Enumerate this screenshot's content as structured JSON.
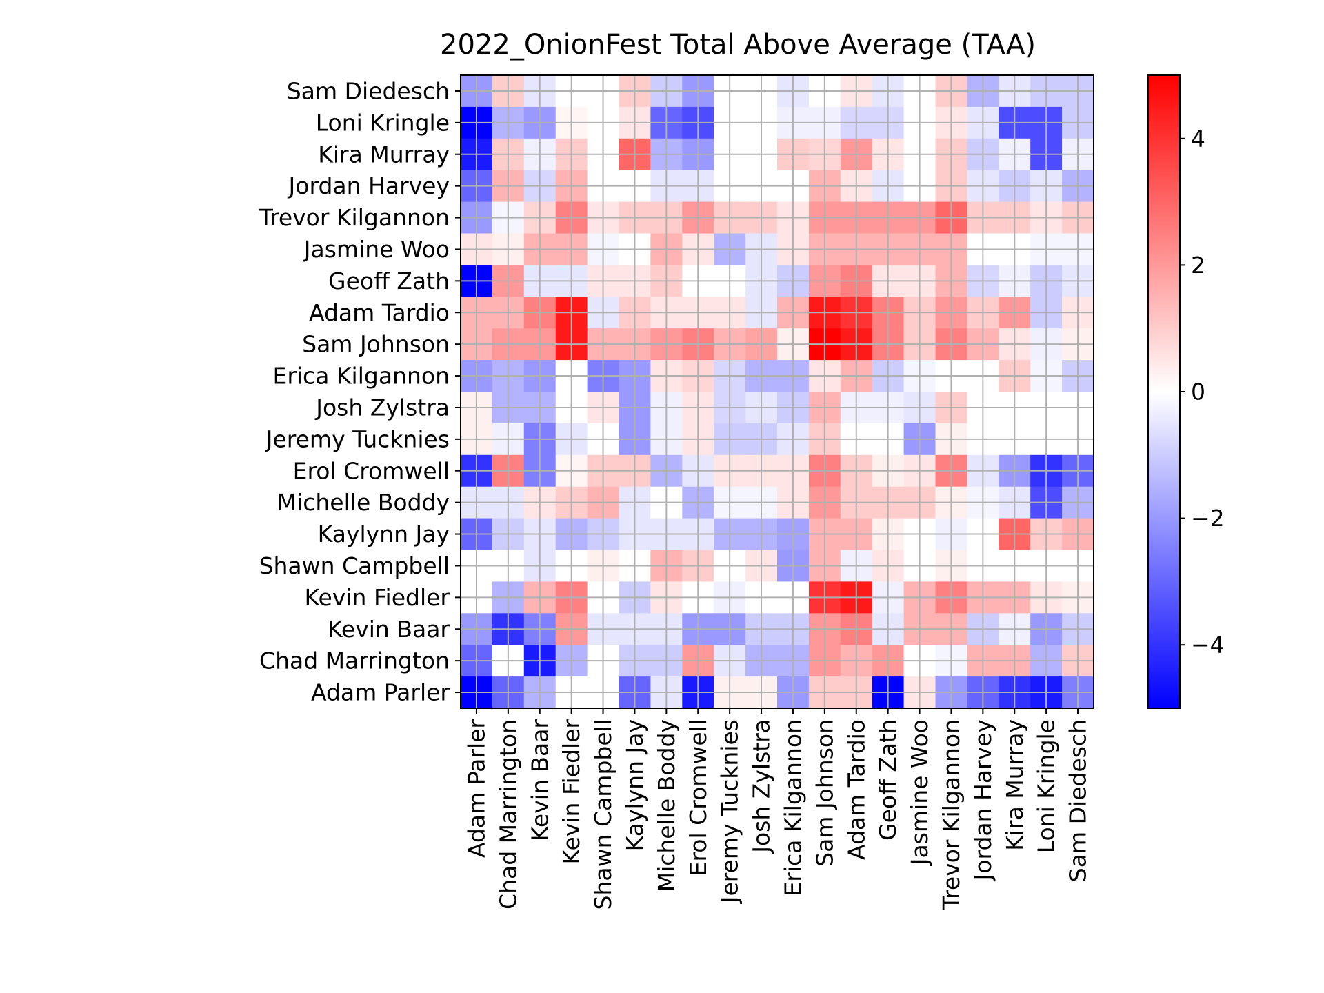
{
  "chart_data": {
    "type": "heatmap",
    "title": "2022_OnionFest Total Above Average (TAA)",
    "xlabel": "",
    "ylabel": "",
    "x_categories": [
      "Adam Parler",
      "Chad Marrington",
      "Kevin Baar",
      "Kevin Fiedler",
      "Shawn Campbell",
      "Kaylynn Jay",
      "Michelle Boddy",
      "Erol Cromwell",
      "Jeremy Tucknies",
      "Josh Zylstra",
      "Erica Kilgannon",
      "Sam Johnson",
      "Adam Tardio",
      "Geoff Zath",
      "Jasmine Woo",
      "Trevor Kilgannon",
      "Jordan Harvey",
      "Kira Murray",
      "Loni Kringle",
      "Sam Diedesch"
    ],
    "y_categories": [
      "Sam Diedesch",
      "Loni Kringle",
      "Kira Murray",
      "Jordan Harvey",
      "Trevor Kilgannon",
      "Jasmine Woo",
      "Geoff Zath",
      "Adam Tardio",
      "Sam Johnson",
      "Erica Kilgannon",
      "Josh Zylstra",
      "Jeremy Tucknies",
      "Erol Cromwell",
      "Michelle Boddy",
      "Kaylynn Jay",
      "Shawn Campbell",
      "Kevin Fiedler",
      "Kevin Baar",
      "Chad Marrington",
      "Adam Parler"
    ],
    "values": [
      [
        -2,
        1,
        -0.5,
        0,
        0,
        1,
        -1,
        -2,
        0,
        0,
        -0.5,
        0,
        0.5,
        -0.5,
        0,
        1,
        -1.5,
        -0.5,
        -1,
        -1
      ],
      [
        -5,
        -1.5,
        -2,
        0.2,
        0,
        0.5,
        -3,
        -3.5,
        0,
        0,
        -0.3,
        -0.3,
        -0.8,
        -0.8,
        0,
        0.5,
        -0.5,
        -3.5,
        -3.5,
        -1
      ],
      [
        -4.5,
        1,
        -0.3,
        1,
        0,
        3,
        -1.5,
        -2,
        0,
        0,
        1,
        0.8,
        2,
        0.5,
        0,
        1,
        -1,
        -0.3,
        -3.5,
        -0.3
      ],
      [
        -3,
        1.5,
        -0.8,
        1.5,
        0,
        0,
        -0.5,
        -0.5,
        0,
        0,
        0,
        1.5,
        0.5,
        -0.5,
        0,
        1,
        -0.5,
        -1,
        -0.5,
        -1.5
      ],
      [
        -2,
        -0.2,
        0.8,
        2.5,
        0.5,
        1,
        1,
        2,
        1,
        1,
        0.5,
        2,
        2,
        2,
        2,
        3,
        1,
        1,
        0.5,
        1
      ],
      [
        0.5,
        0.3,
        1.5,
        1.5,
        -0.2,
        0,
        1.5,
        0.5,
        -1.5,
        -0.5,
        0.5,
        1.5,
        1.5,
        1.5,
        1.5,
        1.5,
        0,
        0,
        -0.2,
        -0.2
      ],
      [
        -5,
        2,
        -0.5,
        -0.5,
        0.5,
        0.5,
        1,
        0,
        0,
        -0.5,
        -1,
        2,
        2.5,
        0.5,
        0.5,
        1.5,
        -0.8,
        -0.3,
        -1,
        -0.5
      ],
      [
        1.5,
        1.5,
        2.5,
        4.5,
        -0.5,
        1,
        0.5,
        0.5,
        0.5,
        -0.5,
        1.5,
        4.5,
        4,
        2.5,
        1,
        2,
        1,
        2,
        -1,
        0.5
      ],
      [
        1.5,
        2,
        2,
        4.5,
        1.5,
        1.5,
        2,
        2.5,
        1.5,
        1.8,
        0.3,
        5,
        4.5,
        2.5,
        1,
        2.5,
        1.5,
        0.5,
        -0.3,
        0.3
      ],
      [
        -2,
        -1.5,
        -2,
        0,
        -2.5,
        -2,
        0.5,
        0.8,
        -0.8,
        -1.5,
        -1.5,
        0.5,
        1.5,
        -1,
        -0.2,
        0,
        0,
        1,
        -0.2,
        -1
      ],
      [
        0.3,
        -1.5,
        -1.5,
        0,
        0.5,
        -2,
        -0.3,
        0.5,
        -0.8,
        -0.5,
        -1,
        1.5,
        -0.3,
        -0.3,
        -0.5,
        1,
        0,
        0,
        0,
        0
      ],
      [
        0.3,
        -0.3,
        -2.5,
        -0.5,
        0,
        -2,
        -0.3,
        0.5,
        -1,
        -1,
        -0.5,
        1,
        0,
        0,
        -2,
        0.3,
        0,
        0,
        0,
        0
      ],
      [
        -4,
        2.5,
        -2.5,
        0.2,
        1,
        1,
        -1.5,
        -0.5,
        0.5,
        0.5,
        0.5,
        2.5,
        1,
        0.3,
        0.5,
        2.5,
        -0.5,
        -2,
        -4,
        -3
      ],
      [
        -0.5,
        -0.5,
        0.5,
        1,
        1.5,
        -0.5,
        0,
        -1.5,
        -0.2,
        -0.2,
        0.5,
        2,
        1,
        1,
        1,
        0.3,
        -0.2,
        -0.5,
        -3.5,
        -1.5
      ],
      [
        -3,
        -1,
        -0.5,
        -1.5,
        -1,
        -0.5,
        -0.5,
        -0.5,
        -1.5,
        -1.5,
        -1.8,
        1.5,
        1.5,
        0.3,
        0,
        -0.3,
        0,
        3,
        1,
        1.5
      ],
      [
        0,
        0,
        -0.5,
        0,
        0.3,
        0,
        1.5,
        1,
        0,
        0.5,
        -2,
        1.5,
        -0.3,
        0.5,
        0,
        0.3,
        0,
        0,
        0,
        0
      ],
      [
        0,
        -1.5,
        1.5,
        2.5,
        0,
        -1,
        0.5,
        0,
        -0.3,
        0,
        0,
        4,
        4.5,
        -0.3,
        1.5,
        2.5,
        1.5,
        1.5,
        0.5,
        0.3
      ],
      [
        -2,
        -4,
        -2.5,
        2,
        -0.5,
        -0.5,
        -0.5,
        -2,
        -2,
        -1,
        -1,
        2,
        2.5,
        -0.5,
        1.5,
        1.5,
        -1,
        -0.3,
        -2,
        -1
      ],
      [
        -3,
        0,
        -4.5,
        -1.5,
        0,
        -1,
        -1,
        2,
        -0.5,
        -1.5,
        -1.5,
        2,
        1.5,
        2,
        0,
        -0.2,
        1.5,
        1.5,
        -1.5,
        1
      ],
      [
        -5,
        -3,
        -1.5,
        0,
        0,
        -3,
        -0.5,
        -4.5,
        0.3,
        0.3,
        -2,
        1,
        1,
        -5,
        0.5,
        -2,
        -3,
        -4,
        -4.5,
        -2.5
      ]
    ],
    "vmin": -5,
    "vmax": 5,
    "colormap": "bwr",
    "colorbar_ticks": [
      -4,
      -2,
      0,
      2,
      4
    ],
    "colorbar_tick_labels": [
      "−4",
      "−2",
      "0",
      "2",
      "4"
    ],
    "grid": true,
    "grid_color": "#b0b0b0",
    "colors": {
      "min": "#0000ff",
      "mid": "#ffffff",
      "max": "#ff0000"
    }
  }
}
